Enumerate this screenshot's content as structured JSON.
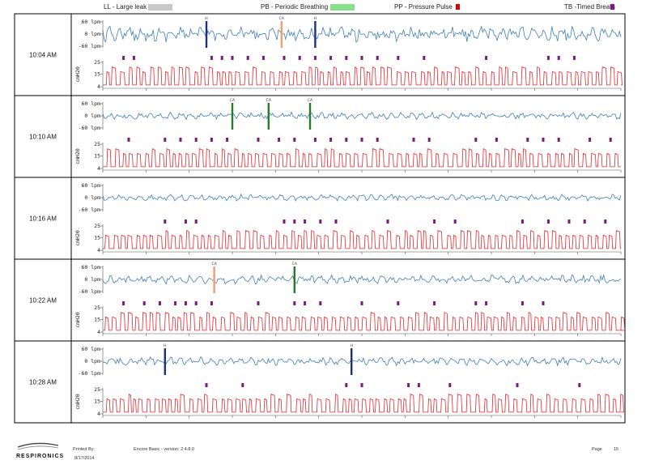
{
  "legend": [
    {
      "code": "LL",
      "label": "LL - Large leak",
      "color": "#c8c8c8"
    },
    {
      "code": "PB",
      "label": "PB - Periodic Breathing",
      "color": "#88e08a"
    },
    {
      "code": "PP",
      "label": "PP - Pressure Pulse",
      "color": "#e00000"
    },
    {
      "code": "TB",
      "label": "TB -Timed Breath",
      "color": "#7a1a80"
    }
  ],
  "colors": {
    "flow": "#3d7fb8",
    "pressure": "#e8252a",
    "timed_breath": "#7a1a80",
    "event_navy": "#1f2f7a",
    "event_orange": "#f0a070",
    "event_green": "#2a7a2a",
    "border": "#000000",
    "grid": "#d0d0d0"
  },
  "chart_data": {
    "type": "line",
    "flow_axis": {
      "label": "lpm",
      "ticks": [
        "60 lpm",
        "0 lpm",
        "-60 lpm"
      ],
      "ylim": [
        -60,
        60
      ]
    },
    "pressure_axis": {
      "label": "cmH20",
      "ticks": [
        "25",
        "15",
        "4"
      ],
      "ylim": [
        4,
        25
      ]
    },
    "segments": [
      {
        "time": "10:04 AM",
        "flow_noise": 1.0,
        "events": [
          {
            "x": 0.2,
            "type": "H",
            "color": "navy"
          },
          {
            "x": 0.345,
            "type": "CA",
            "color": "orange"
          },
          {
            "x": 0.41,
            "type": "H",
            "color": "navy"
          }
        ],
        "timed_breaths": [
          0.04,
          0.06,
          0.21,
          0.23,
          0.25,
          0.28,
          0.31,
          0.35,
          0.38,
          0.41,
          0.44,
          0.47,
          0.5,
          0.53,
          0.57,
          0.62,
          0.74,
          0.86,
          0.88,
          0.91
        ]
      },
      {
        "time": "10:10 AM",
        "flow_noise": 0.35,
        "events": [
          {
            "x": 0.25,
            "type": "CA",
            "color": "green"
          },
          {
            "x": 0.32,
            "type": "CA",
            "color": "green"
          },
          {
            "x": 0.4,
            "type": "CA",
            "color": "green"
          }
        ],
        "timed_breaths": [
          0.05,
          0.12,
          0.15,
          0.18,
          0.21,
          0.24,
          0.3,
          0.34,
          0.37,
          0.41,
          0.44,
          0.47,
          0.5,
          0.53,
          0.6,
          0.63,
          0.72,
          0.76,
          0.82,
          0.85,
          0.88,
          0.94,
          0.98
        ]
      },
      {
        "time": "10:16 AM",
        "flow_noise": 0.3,
        "events": [],
        "timed_breaths": [
          0.12,
          0.16,
          0.18,
          0.35,
          0.37,
          0.39,
          0.42,
          0.45,
          0.55,
          0.64,
          0.68,
          0.81,
          0.86,
          0.9,
          0.93,
          0.97
        ]
      },
      {
        "time": "10:22 AM",
        "flow_noise": 0.5,
        "events": [
          {
            "x": 0.215,
            "type": "CA",
            "color": "orange"
          },
          {
            "x": 0.37,
            "type": "CA",
            "color": "green"
          }
        ],
        "timed_breaths": [
          0.04,
          0.08,
          0.11,
          0.14,
          0.16,
          0.18,
          0.21,
          0.3,
          0.37,
          0.39,
          0.42,
          0.5,
          0.57,
          0.64,
          0.72,
          0.74,
          0.81,
          0.85
        ]
      },
      {
        "time": "10:28 AM",
        "flow_noise": 0.45,
        "events": [
          {
            "x": 0.12,
            "type": "H",
            "color": "navy"
          },
          {
            "x": 0.48,
            "type": "H",
            "color": "navy"
          }
        ],
        "timed_breaths": [
          0.2,
          0.27,
          0.47,
          0.5,
          0.59,
          0.61,
          0.67,
          0.8,
          0.92
        ]
      }
    ]
  },
  "footer": {
    "logo": "RESPIRONICS",
    "printed_by_label": "Printed By:",
    "printed_date": "8/17/2014",
    "software": "Encore Basic - version: 2.4.8.0",
    "page_label": "Page",
    "page_number": "15"
  }
}
